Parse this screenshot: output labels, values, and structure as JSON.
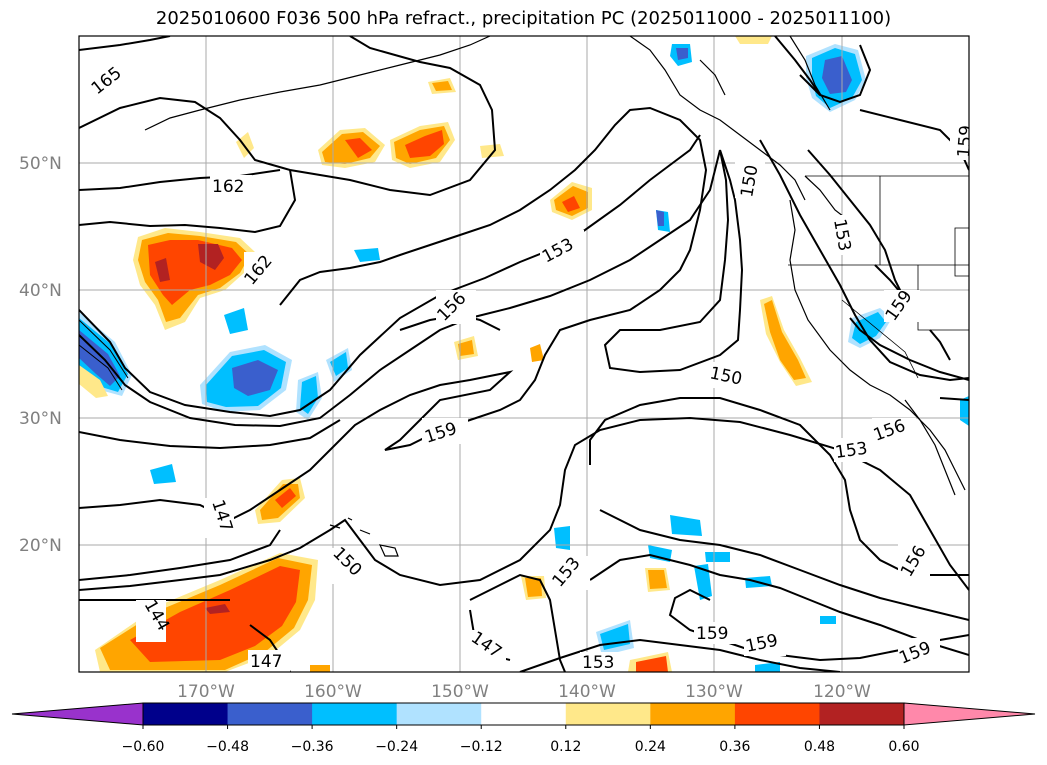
{
  "title": "2025010600 F036 500 hPa refract., precipitation PC (2025011000 - 2025011100)",
  "latitude_labels": [
    "50°N",
    "40°N",
    "30°N",
    "20°N"
  ],
  "longitude_labels": [
    "170°W",
    "160°W",
    "150°W",
    "140°W",
    "130°W",
    "120°W"
  ],
  "contour_labels": [
    "165",
    "162",
    "162",
    "156",
    "153",
    "150",
    "159",
    "159",
    "156",
    "153",
    "153",
    "147",
    "144",
    "147",
    "147",
    "150",
    "153",
    "159",
    "159",
    "153",
    "159",
    "156",
    "159",
    "150"
  ],
  "colorbar": {
    "tick_labels": [
      "−0.60",
      "−0.48",
      "−0.36",
      "−0.24",
      "−0.12",
      "0.12",
      "0.24",
      "0.36",
      "0.48",
      "0.60"
    ],
    "colors": [
      "#9932CC",
      "#00008B",
      "#3A5FCD",
      "#00BFFF",
      "#B0E2FF",
      "#FFFFFF",
      "#FFE88A",
      "#FFA500",
      "#FF4500",
      "#B22222",
      "#FF88AA"
    ]
  }
}
